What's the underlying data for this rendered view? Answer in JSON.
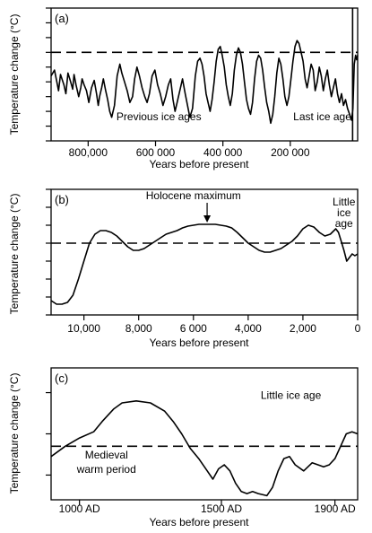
{
  "colors": {
    "ink": "#000000",
    "background": "#ffffff"
  },
  "chart_data": [
    {
      "type": "line",
      "panel_label": "(a)",
      "ylabel": "Temperature change (°C)",
      "xlabel": "Years before present",
      "x_ticks": [
        {
          "value": 800000,
          "label": "800,000"
        },
        {
          "value": 600000,
          "label": "600 000"
        },
        {
          "value": 400000,
          "label": "400 000"
        },
        {
          "value": 200000,
          "label": "200 000"
        }
      ],
      "xlim": [
        910000,
        0
      ],
      "ylim": [
        -6,
        3
      ],
      "y_ticks": [
        -6,
        -5,
        -4,
        -3,
        -2,
        -1,
        0,
        1,
        2,
        3
      ],
      "reference_line": {
        "y": 0,
        "style": "dashed"
      },
      "annotations": [
        {
          "text": "Previous ice ages",
          "x": 590000,
          "y": -4.6
        },
        {
          "text": "Last ice age",
          "x": 105000,
          "y": -4.6
        }
      ],
      "x_marker": 15000,
      "series": [
        {
          "x": [
            910000,
            900000,
            893000,
            888000,
            882000,
            872000,
            866000,
            860000,
            852000,
            846000,
            842000,
            836000,
            828000,
            822000,
            818000,
            812000,
            805000,
            798000,
            790000,
            782000,
            775000,
            770000,
            766000,
            760000,
            755000,
            748000,
            742000,
            736000,
            730000,
            722000,
            714000,
            706000,
            700000,
            692000,
            684000,
            676000,
            668000,
            662000,
            655000,
            648000,
            640000,
            632000,
            625000,
            618000,
            610000,
            602000,
            594000,
            586000,
            578000,
            570000,
            562000,
            555000,
            548000,
            542000,
            536000,
            528000,
            520000,
            512000,
            505000,
            498000,
            490000,
            482000,
            475000,
            468000,
            462000,
            456000,
            450000,
            444000,
            438000,
            432000,
            426000,
            420000,
            414000,
            408000,
            402000,
            396000,
            390000,
            384000,
            378000,
            372000,
            366000,
            360000,
            354000,
            348000,
            342000,
            336000,
            330000,
            324000,
            318000,
            312000,
            306000,
            300000,
            294000,
            288000,
            282000,
            276000,
            270000,
            264000,
            258000,
            252000,
            246000,
            240000,
            234000,
            228000,
            222000,
            216000,
            210000,
            204000,
            198000,
            192000,
            186000,
            180000,
            174000,
            168000,
            162000,
            156000,
            150000,
            144000,
            138000,
            132000,
            126000,
            120000,
            114000,
            108000,
            102000,
            96000,
            90000,
            84000,
            78000,
            72000,
            66000,
            60000,
            54000,
            48000,
            42000,
            36000,
            30000,
            24000,
            18000,
            14000,
            10000,
            6000,
            3000,
            0
          ],
          "y": [
            -1.6,
            -1.2,
            -2.0,
            -2.6,
            -1.5,
            -2.2,
            -2.8,
            -1.4,
            -2.0,
            -2.5,
            -1.5,
            -2.2,
            -3.0,
            -2.4,
            -1.8,
            -2.2,
            -2.6,
            -3.4,
            -2.4,
            -1.9,
            -2.8,
            -3.6,
            -3.0,
            -2.4,
            -1.8,
            -2.6,
            -3.2,
            -4.0,
            -4.4,
            -3.6,
            -1.6,
            -0.8,
            -1.4,
            -2.0,
            -2.6,
            -3.4,
            -3.0,
            -1.8,
            -1.0,
            -1.6,
            -2.4,
            -3.0,
            -3.4,
            -2.8,
            -1.6,
            -1.2,
            -2.2,
            -2.8,
            -3.6,
            -3.0,
            -2.2,
            -1.8,
            -3.2,
            -4.0,
            -3.4,
            -2.6,
            -1.8,
            -2.8,
            -3.6,
            -4.4,
            -3.8,
            -1.6,
            -0.6,
            -0.4,
            -0.8,
            -1.6,
            -2.8,
            -3.4,
            -4.0,
            -3.2,
            -2.0,
            -0.6,
            0.2,
            0.4,
            -0.2,
            -1.0,
            -2.2,
            -3.0,
            -3.6,
            -2.8,
            -1.2,
            -0.2,
            0.3,
            0.0,
            -0.8,
            -2.0,
            -3.2,
            -3.8,
            -4.2,
            -3.4,
            -1.8,
            -0.6,
            -0.2,
            -0.4,
            -1.2,
            -2.4,
            -3.4,
            -4.0,
            -4.8,
            -4.2,
            -3.0,
            -1.4,
            -0.4,
            -0.8,
            -1.8,
            -3.0,
            -3.6,
            -3.0,
            -1.8,
            -0.6,
            0.4,
            0.8,
            0.6,
            0.0,
            -0.6,
            -1.8,
            -2.4,
            -1.6,
            -0.8,
            -1.2,
            -2.6,
            -2.0,
            -1.0,
            -1.6,
            -2.6,
            -1.8,
            -1.2,
            -2.2,
            -3.0,
            -2.4,
            -1.8,
            -2.8,
            -3.4,
            -2.8,
            -3.6,
            -3.2,
            -3.8,
            -4.2,
            -4.6,
            -3.8,
            -0.8,
            -0.2,
            -0.5,
            -0.2
          ]
        }
      ]
    },
    {
      "type": "line",
      "panel_label": "(b)",
      "ylabel": "Temperature change (°C)",
      "xlabel": "Years before present",
      "x_ticks": [
        {
          "value": 10000,
          "label": "10,000"
        },
        {
          "value": 8000,
          "label": "8,000"
        },
        {
          "value": 6000,
          "label": "6 000"
        },
        {
          "value": 4000,
          "label": "4,000"
        },
        {
          "value": 2000,
          "label": "2,000"
        },
        {
          "value": 0,
          "label": "0"
        }
      ],
      "xlim": [
        11200,
        0
      ],
      "ylim": [
        -4,
        3
      ],
      "y_ticks": [
        -4,
        -3,
        -2,
        -1,
        0,
        1,
        2,
        3
      ],
      "reference_line": {
        "y": 0,
        "style": "dashed"
      },
      "annotations": [
        {
          "text": "Holocene maximum",
          "x": 6000,
          "y": 2.45,
          "arrow_to": {
            "x": 5500,
            "y": 1.05
          }
        },
        {
          "text": "Little ice age",
          "x": 500,
          "y": 2.1
        }
      ],
      "series": [
        {
          "x": [
            11200,
            11000,
            10800,
            10600,
            10400,
            10200,
            10000,
            9800,
            9600,
            9400,
            9200,
            9000,
            8800,
            8600,
            8400,
            8200,
            8000,
            7800,
            7600,
            7400,
            7200,
            7000,
            6800,
            6600,
            6400,
            6200,
            6000,
            5800,
            5600,
            5400,
            5200,
            5000,
            4800,
            4600,
            4400,
            4200,
            4000,
            3800,
            3600,
            3400,
            3200,
            3000,
            2800,
            2600,
            2400,
            2200,
            2000,
            1800,
            1600,
            1400,
            1200,
            1000,
            800,
            700,
            600,
            500,
            400,
            300,
            200,
            100,
            0
          ],
          "y": [
            -3.2,
            -3.4,
            -3.4,
            -3.3,
            -2.9,
            -2.0,
            -1.0,
            0.0,
            0.5,
            0.7,
            0.7,
            0.6,
            0.4,
            0.1,
            -0.2,
            -0.4,
            -0.4,
            -0.3,
            -0.1,
            0.1,
            0.3,
            0.5,
            0.6,
            0.7,
            0.85,
            0.95,
            1.0,
            1.05,
            1.05,
            1.05,
            1.05,
            1.0,
            0.95,
            0.85,
            0.6,
            0.3,
            0.0,
            -0.2,
            -0.4,
            -0.5,
            -0.5,
            -0.4,
            -0.3,
            -0.1,
            0.1,
            0.4,
            0.8,
            1.0,
            0.9,
            0.6,
            0.4,
            0.5,
            0.8,
            0.6,
            0.1,
            -0.4,
            -1.0,
            -0.8,
            -0.6,
            -0.7,
            -0.6
          ]
        }
      ]
    },
    {
      "type": "line",
      "panel_label": "(c)",
      "ylabel": "Temperature change (°C)",
      "xlabel": "Years before present",
      "x_ticks": [
        {
          "value": 1000,
          "label": "1000 AD"
        },
        {
          "value": 1500,
          "label": "1500 AD"
        },
        {
          "value": 1900,
          "label": "1900 AD"
        }
      ],
      "xlim": [
        900,
        1980
      ],
      "ylim": [
        -1.6,
        1.6
      ],
      "y_ticks": [
        -1,
        0,
        1
      ],
      "reference_line": {
        "y": -0.3,
        "style": "dashed"
      },
      "annotations": [
        {
          "text": "Little ice age",
          "x": 1745,
          "y": 0.85
        },
        {
          "text": "Medieval",
          "x": 1095,
          "y": -0.6
        },
        {
          "text": "warm period",
          "x": 1095,
          "y": -0.95
        }
      ],
      "series": [
        {
          "x": [
            900,
            950,
            1000,
            1050,
            1080,
            1120,
            1150,
            1200,
            1250,
            1300,
            1330,
            1360,
            1390,
            1420,
            1450,
            1470,
            1490,
            1510,
            1530,
            1550,
            1570,
            1590,
            1610,
            1630,
            1660,
            1680,
            1700,
            1720,
            1740,
            1760,
            1790,
            1820,
            1840,
            1860,
            1880,
            1900,
            1920,
            1940,
            1960,
            1980
          ],
          "y": [
            -0.55,
            -0.3,
            -0.1,
            0.05,
            0.3,
            0.6,
            0.75,
            0.8,
            0.75,
            0.55,
            0.3,
            0.0,
            -0.35,
            -0.6,
            -0.9,
            -1.1,
            -0.85,
            -0.75,
            -0.9,
            -1.2,
            -1.4,
            -1.45,
            -1.4,
            -1.45,
            -1.5,
            -1.3,
            -0.9,
            -0.6,
            -0.55,
            -0.75,
            -0.9,
            -0.7,
            -0.75,
            -0.8,
            -0.75,
            -0.6,
            -0.3,
            0.0,
            0.05,
            0.0
          ]
        }
      ]
    }
  ]
}
